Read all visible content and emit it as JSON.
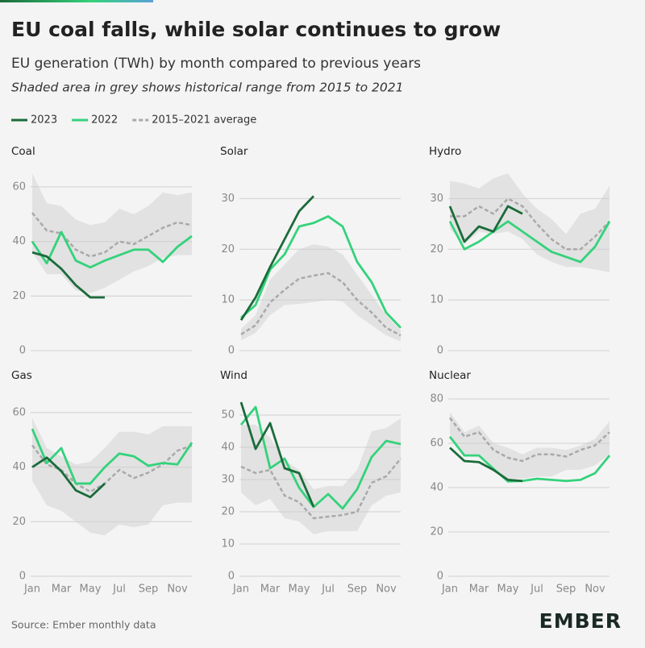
{
  "title": "EU coal falls, while solar continues to grow",
  "subtitle": "EU generation (TWh) by month compared to previous years",
  "note": "Shaded area in grey shows historical range from 2015 to 2021",
  "legend": [
    {
      "name": "2023",
      "color": "#1b6b3a"
    },
    {
      "name": "2022",
      "color": "#34d27b"
    },
    {
      "name": "2015–2021 average",
      "color": "#a9a9a9"
    }
  ],
  "source": "Source: Ember monthly data",
  "logo": "EMBER",
  "chart_data": [
    {
      "type": "line",
      "title": "Coal",
      "ylim": [
        0,
        65
      ],
      "yticks": [
        0,
        20,
        40,
        60
      ],
      "grid": true,
      "range": {
        "color": "#e2e2e2",
        "high": [
          65,
          54,
          53,
          48,
          46,
          47,
          52,
          50,
          53,
          58,
          57,
          58
        ],
        "low": [
          36,
          28,
          28,
          22,
          21,
          23,
          26,
          29,
          31,
          34,
          35,
          35
        ]
      },
      "series": [
        {
          "values": [
            36,
            34.5,
            30,
            24,
            19.5,
            19.5,
            null,
            null,
            null,
            null,
            null,
            null
          ]
        },
        {
          "values": [
            40,
            32,
            43.5,
            33,
            30.5,
            33,
            35,
            37,
            37,
            32.5,
            38,
            42
          ]
        },
        {
          "values": [
            50.5,
            44,
            43,
            37,
            34.5,
            36,
            40,
            39,
            42,
            45,
            47,
            46
          ]
        }
      ]
    },
    {
      "type": "line",
      "title": "Solar",
      "ylim": [
        0,
        35
      ],
      "yticks": [
        0,
        10,
        20,
        30
      ],
      "grid": true,
      "range": {
        "color": "#e2e2e2",
        "high": [
          4.3,
          7,
          14,
          17,
          20,
          21,
          20.5,
          19,
          15,
          11,
          7,
          4
        ],
        "low": [
          2,
          3.5,
          7,
          9,
          9.2,
          9.6,
          10,
          9.7,
          7,
          5,
          3,
          1.8
        ]
      },
      "series": [
        {
          "values": [
            6,
            10.5,
            16.5,
            22,
            27.5,
            30.5,
            null,
            null,
            null,
            null,
            null,
            null
          ]
        },
        {
          "values": [
            6.5,
            9,
            16,
            19,
            24.5,
            25.2,
            26.5,
            24.5,
            17.5,
            13.5,
            7.5,
            4.5
          ]
        },
        {
          "values": [
            3.2,
            5,
            9.5,
            12,
            14.2,
            14.8,
            15.3,
            13.5,
            10,
            7.5,
            4.5,
            3
          ]
        }
      ]
    },
    {
      "type": "line",
      "title": "Hydro",
      "ylim": [
        0,
        35
      ],
      "yticks": [
        0,
        10,
        20,
        30
      ],
      "grid": true,
      "range": {
        "color": "#e2e2e2",
        "high": [
          33.5,
          33,
          32,
          34,
          35,
          31,
          28,
          26,
          23,
          27,
          28,
          32.5
        ],
        "low": [
          24,
          21,
          23.5,
          23,
          23.5,
          22,
          19,
          17.5,
          16.5,
          16.5,
          16,
          15.5
        ]
      },
      "series": [
        {
          "values": [
            28.5,
            21.5,
            24.5,
            23.5,
            28.5,
            27,
            null,
            null,
            null,
            null,
            null,
            null
          ]
        },
        {
          "values": [
            25.5,
            20,
            21.5,
            23.5,
            25.5,
            23.5,
            21.5,
            19.5,
            18.5,
            17.5,
            20.5,
            25.5
          ]
        },
        {
          "values": [
            26.5,
            26.5,
            28.5,
            27,
            30,
            28.5,
            25,
            22,
            20,
            20,
            22.5,
            25.5
          ]
        }
      ]
    },
    {
      "type": "line",
      "title": "Gas",
      "ylim": [
        0,
        65
      ],
      "yticks": [
        0,
        20,
        40,
        60
      ],
      "grid": true,
      "categories": [
        "Jan",
        null,
        "Mar",
        null,
        "May",
        null,
        "Jul",
        null,
        "Sep",
        null,
        "Nov",
        null
      ],
      "range": {
        "color": "#e2e2e2",
        "high": [
          58,
          47,
          44,
          41,
          42,
          47,
          53,
          53,
          52,
          55,
          55,
          55
        ],
        "low": [
          35,
          26,
          24,
          20,
          16,
          15,
          19,
          18,
          19,
          26,
          27,
          27
        ]
      },
      "series": [
        {
          "values": [
            40,
            43.5,
            38.5,
            31.5,
            29,
            34,
            null,
            null,
            null,
            null,
            null,
            null
          ]
        },
        {
          "values": [
            54,
            41.5,
            47,
            34,
            34,
            40,
            45,
            44,
            40.5,
            41.5,
            41,
            49
          ]
        },
        {
          "values": [
            48,
            41,
            39,
            34,
            31,
            34,
            39,
            36,
            38,
            41,
            46,
            48
          ]
        }
      ]
    },
    {
      "type": "line",
      "title": "Wind",
      "ylim": [
        0,
        55
      ],
      "yticks": [
        0,
        10,
        20,
        30,
        40,
        50
      ],
      "grid": true,
      "categories": [
        "Jan",
        null,
        "Mar",
        null,
        "May",
        null,
        "Jul",
        null,
        "Sep",
        null,
        "Nov",
        null
      ],
      "range": {
        "color": "#e2e2e2",
        "high": [
          47,
          47,
          43,
          36,
          33,
          27,
          28,
          28,
          33,
          45,
          46,
          49
        ],
        "low": [
          26,
          22,
          24,
          18,
          17,
          13,
          14,
          14,
          14,
          22,
          25,
          26
        ]
      },
      "series": [
        {
          "values": [
            54,
            39.5,
            47.5,
            33.5,
            32,
            21.5,
            null,
            null,
            null,
            null,
            null,
            null
          ]
        },
        {
          "values": [
            47,
            52.5,
            33.5,
            36.5,
            27.5,
            21.5,
            25.5,
            21,
            27,
            37,
            42,
            41
          ]
        },
        {
          "values": [
            34,
            32,
            33,
            25,
            23,
            18,
            18.5,
            19,
            20,
            29,
            31,
            36.5
          ]
        }
      ]
    },
    {
      "type": "line",
      "title": "Nuclear",
      "ylim": [
        0,
        80
      ],
      "yticks": [
        0,
        20,
        40,
        60,
        80
      ],
      "grid": true,
      "categories": [
        "Jan",
        null,
        "Mar",
        null,
        "May",
        null,
        "Jul",
        null,
        "Sep",
        null,
        "Nov",
        null
      ],
      "range": {
        "color": "#e2e2e2",
        "high": [
          74,
          65,
          68,
          60,
          58,
          55,
          58,
          58,
          57,
          59,
          62,
          70
        ],
        "low": [
          64,
          55,
          55,
          48,
          44,
          44,
          45,
          45,
          48,
          48,
          50,
          55
        ]
      },
      "series": [
        {
          "values": [
            58,
            52,
            51.5,
            48,
            43.5,
            43,
            null,
            null,
            null,
            null,
            null,
            null
          ]
        },
        {
          "values": [
            63,
            54.5,
            54.5,
            48.5,
            42.8,
            43,
            44,
            43.5,
            43,
            43.5,
            46.5,
            54.5
          ]
        },
        {
          "values": [
            71.5,
            63,
            65,
            57,
            53.5,
            52,
            55,
            55,
            54,
            57,
            59,
            65
          ]
        }
      ]
    }
  ]
}
